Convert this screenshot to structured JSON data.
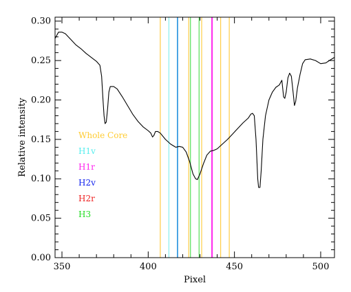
{
  "chart_data": {
    "type": "line",
    "xlabel": "Pixel",
    "ylabel": "Relative intensity",
    "xlim": [
      346,
      508
    ],
    "ylim": [
      0,
      0.305
    ],
    "x_ticks": [
      350,
      400,
      450,
      500
    ],
    "y_ticks": [
      0.0,
      0.05,
      0.1,
      0.15,
      0.2,
      0.25,
      0.3
    ],
    "x_tick_labels": [
      "350",
      "400",
      "450",
      "500"
    ],
    "y_tick_labels": [
      "0.00",
      "0.05",
      "0.10",
      "0.15",
      "0.20",
      "0.25",
      "0.30"
    ],
    "series": [
      {
        "color": "#000000",
        "points": [
          [
            346,
            0.278
          ],
          [
            348,
            0.286
          ],
          [
            350,
            0.286
          ],
          [
            352,
            0.284
          ],
          [
            355,
            0.277
          ],
          [
            358,
            0.27
          ],
          [
            361,
            0.265
          ],
          [
            364,
            0.259
          ],
          [
            367,
            0.254
          ],
          [
            370,
            0.249
          ],
          [
            372,
            0.244
          ],
          [
            373,
            0.23
          ],
          [
            373.8,
            0.2
          ],
          [
            374.4,
            0.18
          ],
          [
            375,
            0.17
          ],
          [
            375.7,
            0.172
          ],
          [
            376.5,
            0.19
          ],
          [
            377.2,
            0.21
          ],
          [
            378,
            0.217
          ],
          [
            380,
            0.217
          ],
          [
            382,
            0.214
          ],
          [
            385,
            0.204
          ],
          [
            388,
            0.193
          ],
          [
            391,
            0.182
          ],
          [
            394,
            0.173
          ],
          [
            397,
            0.166
          ],
          [
            400,
            0.161
          ],
          [
            401.5,
            0.158
          ],
          [
            402.5,
            0.153
          ],
          [
            403.3,
            0.155
          ],
          [
            404.2,
            0.16
          ],
          [
            405.5,
            0.16
          ],
          [
            407,
            0.158
          ],
          [
            410,
            0.15
          ],
          [
            413,
            0.144
          ],
          [
            416,
            0.14
          ],
          [
            418,
            0.141
          ],
          [
            420,
            0.14
          ],
          [
            422,
            0.134
          ],
          [
            424,
            0.122
          ],
          [
            426,
            0.106
          ],
          [
            427.5,
            0.1
          ],
          [
            428.5,
            0.099
          ],
          [
            430,
            0.106
          ],
          [
            432,
            0.119
          ],
          [
            434,
            0.13
          ],
          [
            436,
            0.135
          ],
          [
            438,
            0.136
          ],
          [
            440,
            0.138
          ],
          [
            443,
            0.144
          ],
          [
            446,
            0.15
          ],
          [
            449,
            0.157
          ],
          [
            452,
            0.164
          ],
          [
            455,
            0.171
          ],
          [
            458,
            0.177
          ],
          [
            459.5,
            0.182
          ],
          [
            460.5,
            0.183
          ],
          [
            461.5,
            0.18
          ],
          [
            462.5,
            0.15
          ],
          [
            463.5,
            0.1
          ],
          [
            464,
            0.089
          ],
          [
            464.8,
            0.089
          ],
          [
            465.5,
            0.11
          ],
          [
            466.5,
            0.15
          ],
          [
            468,
            0.18
          ],
          [
            470,
            0.2
          ],
          [
            472,
            0.21
          ],
          [
            474,
            0.216
          ],
          [
            476,
            0.219
          ],
          [
            477.5,
            0.225
          ],
          [
            478.5,
            0.204
          ],
          [
            479.2,
            0.202
          ],
          [
            480,
            0.21
          ],
          [
            481,
            0.228
          ],
          [
            482,
            0.234
          ],
          [
            483,
            0.23
          ],
          [
            484,
            0.21
          ],
          [
            484.8,
            0.193
          ],
          [
            485.5,
            0.198
          ],
          [
            486.5,
            0.215
          ],
          [
            488,
            0.232
          ],
          [
            489.5,
            0.246
          ],
          [
            491,
            0.251
          ],
          [
            494,
            0.252
          ],
          [
            497,
            0.25
          ],
          [
            500,
            0.246
          ],
          [
            503,
            0.247
          ],
          [
            505,
            0.25
          ],
          [
            508,
            0.254
          ]
        ]
      }
    ],
    "vertical_lines": [
      {
        "x": 407.0,
        "color": "#ffcc44"
      },
      {
        "x": 412.0,
        "color": "#88eeee"
      },
      {
        "x": 417.0,
        "color": "#1f8fdd"
      },
      {
        "x": 423.5,
        "color": "#ffcc44"
      },
      {
        "x": 424.5,
        "color": "#55dd55"
      },
      {
        "x": 429.5,
        "color": "#55dd55"
      },
      {
        "x": 431.0,
        "color": "#ffcc44"
      },
      {
        "x": 437.0,
        "color": "#ff33ee"
      },
      {
        "x": 442.0,
        "color": "#ffcc44"
      },
      {
        "x": 447.0,
        "color": "#ffcc44"
      }
    ],
    "legend": [
      {
        "label": "Whole Core",
        "color": "#ffcc33"
      },
      {
        "label": "H1v",
        "color": "#55eeee"
      },
      {
        "label": "H1r",
        "color": "#ff22ee"
      },
      {
        "label": "H2v",
        "color": "#1122ee"
      },
      {
        "label": "H2r",
        "color": "#ee2222"
      },
      {
        "label": "H3",
        "color": "#22dd22"
      }
    ],
    "legend_placement": "left-middle",
    "grid": false
  }
}
